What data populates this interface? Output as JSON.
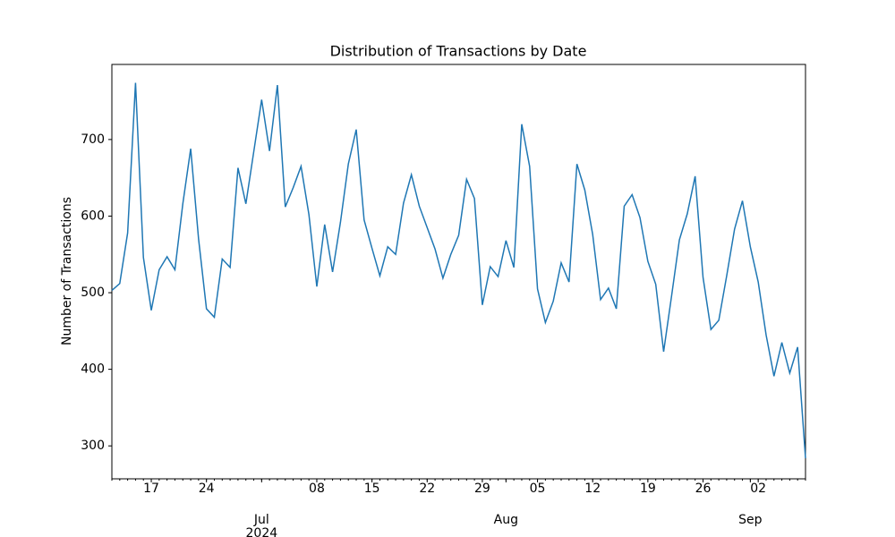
{
  "chart_data": {
    "type": "line",
    "title": "Distribution of Transactions by Date",
    "ylabel": "Number of Transactions",
    "color": "#1f77b4",
    "x": [
      "2024-06-12",
      "2024-06-13",
      "2024-06-14",
      "2024-06-15",
      "2024-06-16",
      "2024-06-17",
      "2024-06-18",
      "2024-06-19",
      "2024-06-20",
      "2024-06-21",
      "2024-06-22",
      "2024-06-23",
      "2024-06-24",
      "2024-06-25",
      "2024-06-26",
      "2024-06-27",
      "2024-06-28",
      "2024-06-29",
      "2024-06-30",
      "2024-07-01",
      "2024-07-02",
      "2024-07-03",
      "2024-07-04",
      "2024-07-05",
      "2024-07-06",
      "2024-07-07",
      "2024-07-08",
      "2024-07-09",
      "2024-07-10",
      "2024-07-11",
      "2024-07-12",
      "2024-07-13",
      "2024-07-14",
      "2024-07-15",
      "2024-07-16",
      "2024-07-17",
      "2024-07-18",
      "2024-07-19",
      "2024-07-20",
      "2024-07-21",
      "2024-07-22",
      "2024-07-23",
      "2024-07-24",
      "2024-07-25",
      "2024-07-26",
      "2024-07-27",
      "2024-07-28",
      "2024-07-29",
      "2024-07-30",
      "2024-07-31",
      "2024-08-01",
      "2024-08-02",
      "2024-08-03",
      "2024-08-04",
      "2024-08-05",
      "2024-08-06",
      "2024-08-07",
      "2024-08-08",
      "2024-08-09",
      "2024-08-10",
      "2024-08-11",
      "2024-08-12",
      "2024-08-13",
      "2024-08-14",
      "2024-08-15",
      "2024-08-16",
      "2024-08-17",
      "2024-08-18",
      "2024-08-19",
      "2024-08-20",
      "2024-08-21",
      "2024-08-22",
      "2024-08-23",
      "2024-08-24",
      "2024-08-25",
      "2024-08-26",
      "2024-08-27",
      "2024-08-28",
      "2024-08-29",
      "2024-08-30",
      "2024-08-31",
      "2024-09-01",
      "2024-09-02",
      "2024-09-03",
      "2024-09-04",
      "2024-09-05",
      "2024-09-06",
      "2024-09-07",
      "2024-09-08"
    ],
    "values": [
      503,
      512,
      578,
      774,
      546,
      477,
      530,
      547,
      530,
      616,
      688,
      570,
      479,
      468,
      544,
      533,
      663,
      616,
      684,
      752,
      685,
      771,
      612,
      637,
      665,
      602,
      508,
      589,
      527,
      592,
      668,
      713,
      595,
      558,
      522,
      560,
      550,
      617,
      654,
      613,
      585,
      557,
      519,
      550,
      575,
      648,
      623,
      484,
      534,
      521,
      568,
      533,
      720,
      665,
      505,
      461,
      489,
      539,
      514,
      668,
      634,
      576,
      491,
      506,
      479,
      613,
      628,
      598,
      541,
      511,
      423,
      495,
      569,
      603,
      652,
      520,
      452,
      464,
      522,
      583,
      620,
      560,
      514,
      445,
      391,
      435,
      395,
      429,
      284
    ],
    "xlim": [
      "2024-06-12",
      "2024-09-08"
    ],
    "xticks": [
      {
        "value": "2024-06-17",
        "label": "17"
      },
      {
        "value": "2024-06-24",
        "label": "24"
      },
      {
        "value": "2024-07-08",
        "label": "08"
      },
      {
        "value": "2024-07-15",
        "label": "15"
      },
      {
        "value": "2024-07-22",
        "label": "22"
      },
      {
        "value": "2024-07-29",
        "label": "29"
      },
      {
        "value": "2024-08-05",
        "label": "05"
      },
      {
        "value": "2024-08-12",
        "label": "12"
      },
      {
        "value": "2024-08-19",
        "label": "19"
      },
      {
        "value": "2024-08-26",
        "label": "26"
      },
      {
        "value": "2024-09-02",
        "label": "02"
      }
    ],
    "x_month_ticks": [
      {
        "value": "2024-07-01",
        "label": "Jul\n2024"
      },
      {
        "value": "2024-08-01",
        "label": "Aug"
      },
      {
        "value": "2024-09-01",
        "label": "Sep"
      }
    ],
    "ylim": [
      257,
      798
    ],
    "yticks": [
      300,
      400,
      500,
      600,
      700
    ],
    "grid": false
  }
}
